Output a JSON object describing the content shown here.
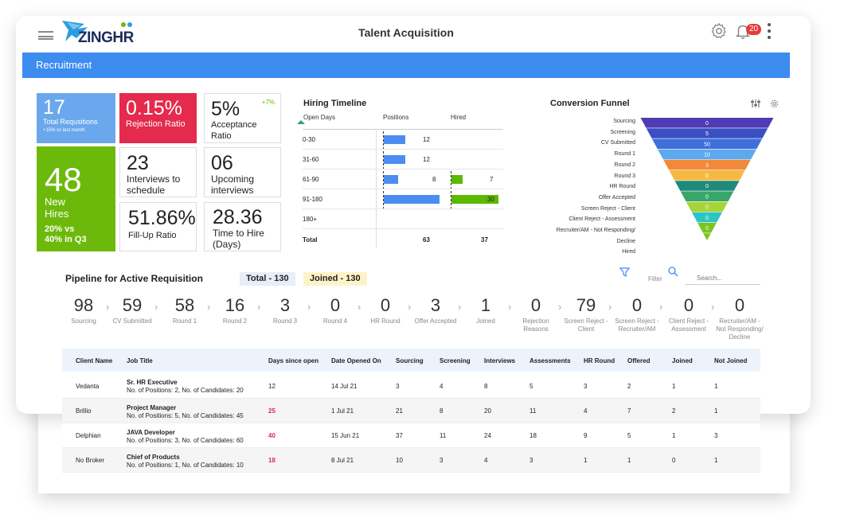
{
  "app": {
    "title": "Talent Acquisition",
    "logo_text": "ZINGHR",
    "notification_count": "20"
  },
  "section": "Recruitment",
  "kpis": {
    "total_requisitions": {
      "value": "17",
      "label": "Total Requsitions",
      "sub": "+15% vs last month"
    },
    "rejection_ratio": {
      "value": "0.15%",
      "label": "Rejection Ratio"
    },
    "acceptance_ratio": {
      "value": "5%",
      "label": "Acceptance Ratio",
      "delta": "+7%"
    },
    "new_hires": {
      "value": "48",
      "label1": "New",
      "label2": "Hires",
      "sub1": "20% vs",
      "sub2": "40% in Q3"
    },
    "interviews": {
      "value": "23",
      "label1": "Interviews to",
      "label2": "schedule"
    },
    "upcoming": {
      "value": "06",
      "label1": "Upcoming",
      "label2": "interviews"
    },
    "fillup": {
      "value": "51.86%",
      "label": "Fill-Up Ratio"
    },
    "time_to_hire": {
      "value": "28.36",
      "label1": "Time to Hire",
      "label2": "(Days)"
    }
  },
  "hiring_timeline": {
    "title": "Hiring Timeline",
    "headers": [
      "Open Days",
      "Positions",
      "Hired"
    ],
    "rows": [
      {
        "range": "0-30",
        "positions": 12,
        "positions_label": "12",
        "hired": null,
        "hired_label": ""
      },
      {
        "range": "31-60",
        "positions": 12,
        "positions_label": "12",
        "hired": null,
        "hired_label": ""
      },
      {
        "range": "61-90",
        "positions": 8,
        "positions_label": "8",
        "hired": 7,
        "hired_label": "7"
      },
      {
        "range": "91-180",
        "positions": 31,
        "positions_label": "",
        "hired": 30,
        "hired_label": "30"
      },
      {
        "range": "180+",
        "positions": null,
        "positions_label": "",
        "hired": null,
        "hired_label": ""
      }
    ],
    "total": {
      "label": "Total",
      "positions": "63",
      "hired": "37"
    }
  },
  "funnel": {
    "title": "Conversion Funnel",
    "stages": [
      {
        "label": "Sourcing",
        "value": "0",
        "color": "#4f3bb3"
      },
      {
        "label": "Screening",
        "value": "5",
        "color": "#3b4fc4"
      },
      {
        "label": "CV Submitted",
        "value": "50",
        "color": "#3f6fdb"
      },
      {
        "label": "Round 1",
        "value": "10",
        "color": "#5ea8f0"
      },
      {
        "label": "Round 2",
        "value": "3",
        "color": "#f08a3a"
      },
      {
        "label": "Round 3",
        "value": "0",
        "color": "#f5b942"
      },
      {
        "label": "HR Round",
        "value": "0",
        "color": "#1f8a7a"
      },
      {
        "label": "Offer Accepted",
        "value": "0",
        "color": "#38a66a"
      },
      {
        "label": "Screen Reject - Client",
        "value": "0",
        "color": "#a6d43a"
      },
      {
        "label": "Client Reject - Assessment",
        "value": "0",
        "color": "#2ec4c4"
      },
      {
        "label": "Recruiter/AM - Not Responding/",
        "value": "0",
        "color": "#7cc41e"
      },
      {
        "label": "Decline",
        "value": "",
        "color": ""
      },
      {
        "label": "Hired",
        "value": "",
        "color": ""
      }
    ]
  },
  "pipeline": {
    "title": "Pipeline for Active Requisition",
    "total": "Total - 130",
    "joined": "Joined - 130",
    "filter_label": "Filter",
    "search_placeholder": "Search...",
    "stages": [
      {
        "n": "98",
        "t": "Sourcing"
      },
      {
        "n": "59",
        "t": "CV Submitted"
      },
      {
        "n": "58",
        "t": "Round 1"
      },
      {
        "n": "16",
        "t": "Round 2"
      },
      {
        "n": "3",
        "t": "Round 3"
      },
      {
        "n": "0",
        "t": "Round 4"
      },
      {
        "n": "0",
        "t": "HR Round"
      },
      {
        "n": "3",
        "t": "Offer Accepted"
      },
      {
        "n": "1",
        "t": "Joined"
      },
      {
        "n": "0",
        "t": "Rejection Reasons"
      },
      {
        "n": "79",
        "t": "Screen Reject - Client"
      },
      {
        "n": "0",
        "t": "Screen Reject - Recruiter/AM"
      },
      {
        "n": "0",
        "t": "Client Reject - Assessment"
      },
      {
        "n": "0",
        "t": "Recruiter/AM - Not Responding/ Decline"
      }
    ]
  },
  "table": {
    "headers": [
      "Client Name",
      "Job Title",
      "Days since open",
      "Date Opened On",
      "Sourcing",
      "Screening",
      "Interviews",
      "Assessments",
      "HR Round",
      "Offered",
      "Joined",
      "Not Joined"
    ],
    "rows": [
      {
        "client": "Vedanta",
        "job": "Sr. HR Executive",
        "positions": "No. of Positions: 2, No. of Candidates: 20",
        "days": "12",
        "late": false,
        "date": "14 Jul 21",
        "vals": [
          "3",
          "4",
          "8",
          "5",
          "3",
          "2",
          "1",
          "1"
        ]
      },
      {
        "client": "Brillio",
        "job": "Project Manager",
        "positions": "No. of Positions: 5, No. of Candidates: 45",
        "days": "25",
        "late": true,
        "date": "1 Jul 21",
        "vals": [
          "21",
          "8",
          "20",
          "11",
          "4",
          "7",
          "2",
          "1"
        ]
      },
      {
        "client": "Delphian",
        "job": "JAVA Developer",
        "positions": "No. of Positions: 3, No. of Candidates: 60",
        "days": "40",
        "late": true,
        "date": "15 Jun 21",
        "vals": [
          "37",
          "11",
          "24",
          "18",
          "9",
          "5",
          "1",
          "3"
        ]
      },
      {
        "client": "No Broker",
        "job": "Chief of Products",
        "positions": "No. of Positions: 1, No. of Candidates: 10",
        "days": "18",
        "late": true,
        "date": "8 Jul 21",
        "vals": [
          "10",
          "3",
          "4",
          "3",
          "1",
          "1",
          "0",
          "1"
        ]
      }
    ]
  }
}
